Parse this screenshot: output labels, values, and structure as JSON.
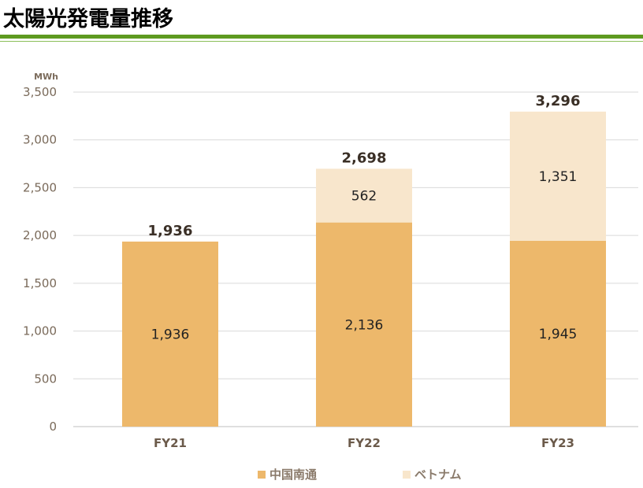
{
  "title": "太陽光発電量推移",
  "colors": {
    "accent_green": "#5e9a1f",
    "series_china": "#edb86b",
    "series_vietnam": "#f8e6cc",
    "grid": "#d9d9d9",
    "axis_text": "#7a6a5a"
  },
  "chart_data": {
    "type": "bar",
    "stacked": true,
    "unit_label": "MWh",
    "categories": [
      "FY21",
      "FY22",
      "FY23"
    ],
    "series": [
      {
        "name": "中国南通",
        "values": [
          1936,
          2136,
          1945
        ],
        "labels": [
          "1,936",
          "2,136",
          "1,945"
        ]
      },
      {
        "name": "ベトナム",
        "values": [
          0,
          562,
          1351
        ],
        "labels": [
          "",
          "562",
          "1,351"
        ]
      }
    ],
    "totals": [
      1936,
      2698,
      3296
    ],
    "total_labels": [
      "1,936",
      "2,698",
      "3,296"
    ],
    "ylim": [
      0,
      3500
    ],
    "yticks": [
      0,
      500,
      1000,
      1500,
      2000,
      2500,
      3000,
      3500
    ],
    "ytick_labels": [
      "0",
      "500",
      "1,000",
      "1,500",
      "2,000",
      "2,500",
      "3,000",
      "3,500"
    ],
    "grid": true,
    "legend_position": "bottom"
  }
}
